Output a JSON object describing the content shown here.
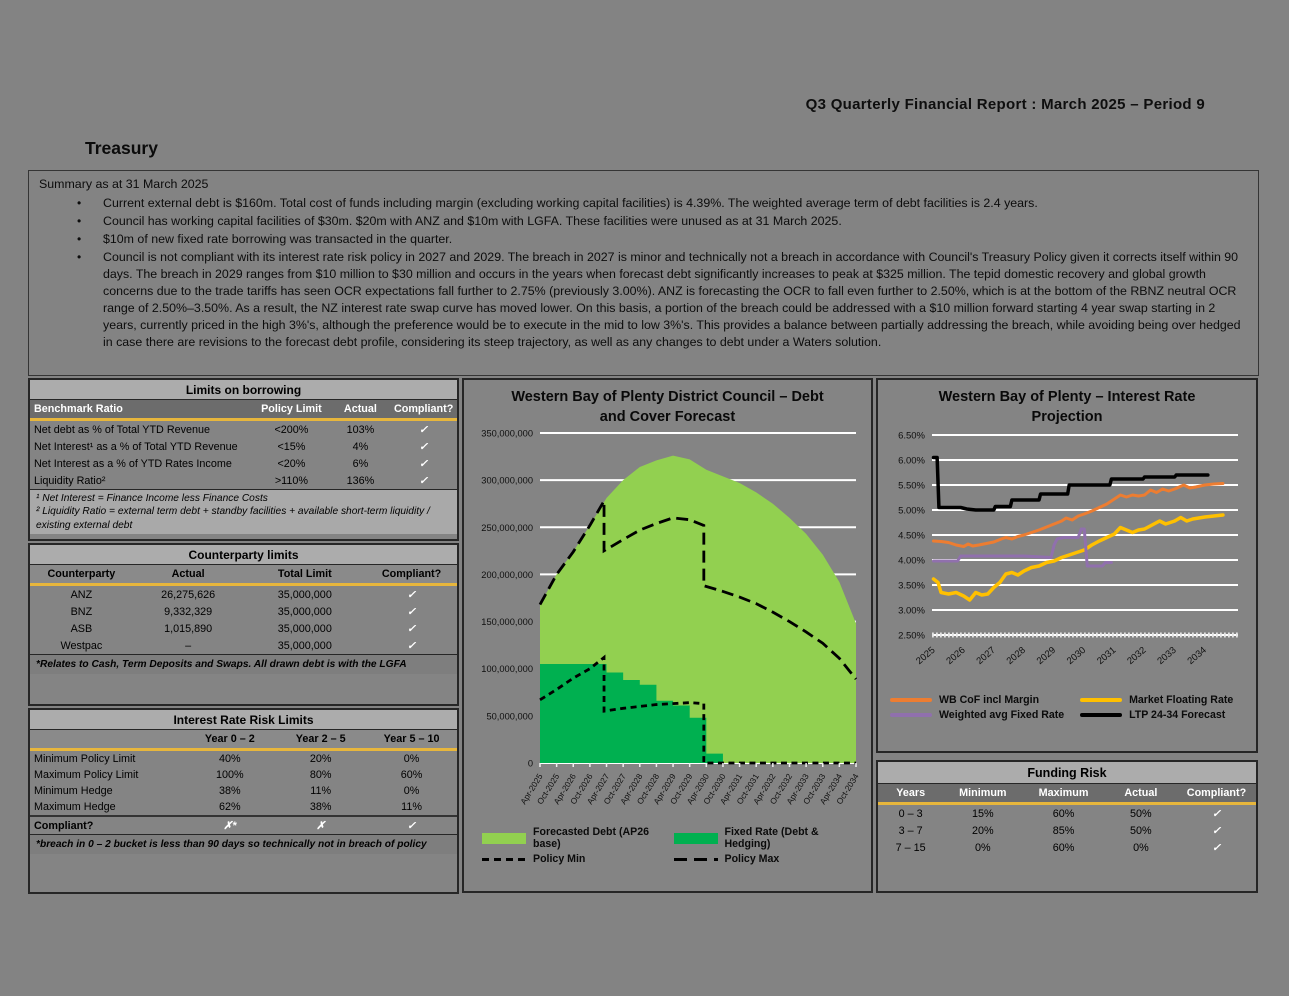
{
  "page": {
    "header": "Q3 Quarterly  Financial Report :  March 2025 – Period 9",
    "section_title": "Treasury"
  },
  "summary": {
    "heading": "Summary as at 31 March 2025",
    "bullets": [
      "Current external debt is $160m. Total cost of funds including margin (excluding working capital facilities) is 4.39%. The weighted average term of debt facilities is 2.4 years.",
      "Council has working capital facilities of $30m.  $20m with ANZ and $10m with LGFA. These facilities were unused as at 31 March 2025.",
      "$10m of new fixed rate borrowing was transacted in the quarter.",
      "Council is not compliant with its interest rate risk policy in 2027 and 2029. The breach in 2027 is minor and technically not a breach in accordance with Council's Treasury Policy given it corrects itself within 90 days. The breach in 2029 ranges from $10 million to $30 million and occurs in the years when forecast debt significantly increases to peak at $325 million.  The tepid domestic recovery and global growth concerns due to the trade tariffs has seen OCR expectations fall further to 2.75% (previously 3.00%). ANZ is forecasting the OCR to fall even further to 2.50%, which is at the bottom of the RBNZ neutral OCR range of 2.50%–3.50%. As a result, the NZ interest rate swap curve has moved lower. On this basis, a portion of the breach could be addressed with a $10 million forward starting 4 year swap starting in 2 years, currently priced in the high 3%'s, although the preference would be to execute in the mid to low 3%'s. This provides a balance between partially addressing the breach, while avoiding being over hedged in case there are revisions to the forecast debt profile, considering its steep trajectory, as well as any changes to debt under a Waters solution."
    ]
  },
  "limits_table": {
    "title": "Limits on borrowing",
    "headers": [
      "Benchmark Ratio",
      "Policy Limit",
      "Actual",
      "Compliant?"
    ],
    "widths": [
      "54%",
      "18%",
      "13%",
      "15%"
    ],
    "align": [
      "left",
      "center",
      "center",
      "center"
    ],
    "rows": [
      [
        "Net debt as % of Total YTD Revenue",
        "<200%",
        "103%",
        "✓"
      ],
      [
        "Net Interest¹ as a % of Total YTD Revenue",
        "<15%",
        "4%",
        "✓"
      ],
      [
        "Net Interest as a % of YTD Rates Income",
        "<20%",
        "6%",
        "✓"
      ],
      [
        "Liquidity Ratio²",
        ">110%",
        "136%",
        "✓"
      ]
    ],
    "footnotes": [
      "¹ Net Interest = Finance Income less Finance Costs",
      "² Liquidity Ratio = external term debt + standby facilities + available short-term liquidity / existing external debt"
    ]
  },
  "counterparty_table": {
    "title": "Counterparty limits",
    "headers": [
      "Counterparty",
      "Actual",
      "Total Limit",
      "Compliant?"
    ],
    "widths": [
      "24%",
      "26%",
      "29%",
      "21%"
    ],
    "align": [
      "center",
      "center",
      "center",
      "center"
    ],
    "rows": [
      [
        "ANZ",
        "26,275,626",
        "35,000,000",
        "✓"
      ],
      [
        "BNZ",
        "9,332,329",
        "35,000,000",
        "✓"
      ],
      [
        "ASB",
        "1,015,890",
        "35,000,000",
        "✓"
      ],
      [
        "Westpac",
        "–",
        "35,000,000",
        "✓"
      ]
    ],
    "footnotes": [
      "*Relates to Cash, Term Deposits and Swaps. All drawn debt is with the LGFA"
    ]
  },
  "interest_risk_table": {
    "title": "Interest Rate Risk Limits",
    "headers": [
      "",
      "Year 0 – 2",
      "Year 2 – 5",
      "Year 5 – 10"
    ],
    "widths": [
      "37%",
      "21%",
      "21%",
      "21%"
    ],
    "align": [
      "left",
      "center",
      "center",
      "center"
    ],
    "rows": [
      [
        "Minimum Policy Limit",
        "40%",
        "20%",
        "0%"
      ],
      [
        "Maximum Policy Limit",
        "100%",
        "80%",
        "60%"
      ],
      [
        "Minimum Hedge",
        "38%",
        "11%",
        "0%"
      ],
      [
        "Maximum Hedge",
        "62%",
        "38%",
        "11%"
      ],
      [
        "Compliant?",
        "✗*",
        "✗",
        "✓"
      ]
    ],
    "footnotes": [
      "*breach in 0 – 2 bucket is less than 90 days so technically not in breach of policy"
    ]
  },
  "funding_table": {
    "title": "Funding Risk",
    "headers": [
      "Years",
      "Minimum",
      "Maximum",
      "Actual",
      "Compliant?"
    ],
    "widths": [
      "17%",
      "21%",
      "22%",
      "19%",
      "21%"
    ],
    "align": [
      "center",
      "center",
      "center",
      "center",
      "center"
    ],
    "rows": [
      [
        "0 – 3",
        "15%",
        "60%",
        "50%",
        "✓"
      ],
      [
        "3 – 7",
        "20%",
        "85%",
        "50%",
        "✓"
      ],
      [
        "7 – 15",
        "0%",
        "60%",
        "0%",
        "✓"
      ]
    ]
  },
  "colors": {
    "light_green": "#92D050",
    "dark_green": "#00B050",
    "orange": "#ED7D31",
    "yellow": "#FFC000",
    "purple": "#9070AD",
    "black": "#000000",
    "gold_rule": "#E7B63C"
  },
  "chart_data": [
    {
      "type": "area",
      "title": "Western Bay of Plenty District Council – Debt and Cover Forecast",
      "x_labels": [
        "Apr-2025",
        "Oct-2025",
        "Apr-2026",
        "Oct-2026",
        "Apr-2027",
        "Oct-2027",
        "Apr-2028",
        "Oct-2028",
        "Apr-2029",
        "Oct-2029",
        "Apr-2030",
        "Oct-2030",
        "Apr-2031",
        "Oct-2031",
        "Apr-2032",
        "Oct-2032",
        "Apr-2033",
        "Oct-2033",
        "Apr-2034",
        "Oct-2034"
      ],
      "ylim": [
        0,
        350000000
      ],
      "y_tick_step": 50000000,
      "grid": true,
      "legend_position": "bottom",
      "series": [
        {
          "name": "Forecasted Debt (AP26 base)",
          "style": "area",
          "color": "#92D050",
          "values": [
            168000000,
            200000000,
            224000000,
            252000000,
            281000000,
            300000000,
            314000000,
            321000000,
            326000000,
            322000000,
            311000000,
            304000000,
            297000000,
            287000000,
            275000000,
            260000000,
            243000000,
            221000000,
            192000000,
            148000000
          ]
        },
        {
          "name": "Fixed Rate (Debt & Hedging)",
          "style": "area-step",
          "color": "#00B050",
          "values": [
            105000000,
            105000000,
            105000000,
            105000000,
            96000000,
            88000000,
            83000000,
            66000000,
            61000000,
            48000000,
            10000000,
            0,
            0,
            0,
            0,
            0,
            0,
            0,
            0,
            0
          ]
        },
        {
          "name": "Policy Min",
          "style": "dashed",
          "color": "#000000",
          "dash": "6 4.5",
          "points": [
            [
              0,
              67000000
            ],
            [
              1,
              78000000
            ],
            [
              2,
              90000000
            ],
            [
              3,
              100000000
            ],
            [
              3.85,
              112000000
            ],
            [
              3.85,
              55000000
            ],
            [
              5,
              58000000
            ],
            [
              7,
              62000000
            ],
            [
              9,
              64000000
            ],
            [
              9.85,
              63000000
            ],
            [
              9.85,
              0
            ],
            [
              19,
              0
            ]
          ]
        },
        {
          "name": "Policy Max",
          "style": "dashed",
          "color": "#000000",
          "dash": "12 6",
          "points": [
            [
              0,
              168000000
            ],
            [
              1,
              200000000
            ],
            [
              2,
              224000000
            ],
            [
              3,
              252000000
            ],
            [
              3.85,
              278000000
            ],
            [
              3.85,
              225000000
            ],
            [
              5,
              237000000
            ],
            [
              6,
              247000000
            ],
            [
              7,
              254000000
            ],
            [
              8,
              260000000
            ],
            [
              9,
              258000000
            ],
            [
              9.85,
              252000000
            ],
            [
              9.85,
              188000000
            ],
            [
              11,
              182000000
            ],
            [
              12,
              176000000
            ],
            [
              13,
              169000000
            ],
            [
              14,
              160000000
            ],
            [
              15,
              150000000
            ],
            [
              16,
              139000000
            ],
            [
              17,
              127000000
            ],
            [
              18,
              111000000
            ],
            [
              19,
              89000000
            ]
          ]
        }
      ]
    },
    {
      "type": "line",
      "title": "Western Bay of Plenty – Interest Rate Projection",
      "xlim": [
        2024.95,
        2035.1
      ],
      "x_ticks": [
        2025,
        2026,
        2027,
        2028,
        2029,
        2030,
        2031,
        2032,
        2033,
        2034
      ],
      "ylim": [
        2.5,
        6.5
      ],
      "y_tick_step": 0.5,
      "grid": true,
      "legend_position": "bottom",
      "series": [
        {
          "name": "WB CoF incl Margin",
          "style": "line",
          "color": "#ED7D31",
          "width": 3,
          "points": [
            [
              2025,
              4.38
            ],
            [
              2025.25,
              4.37
            ],
            [
              2025.5,
              4.35
            ],
            [
              2025.75,
              4.3
            ],
            [
              2026,
              4.27
            ],
            [
              2026.15,
              4.32
            ],
            [
              2026.3,
              4.28
            ],
            [
              2026.5,
              4.3
            ],
            [
              2026.75,
              4.33
            ],
            [
              2027,
              4.36
            ],
            [
              2027.25,
              4.42
            ],
            [
              2027.4,
              4.45
            ],
            [
              2027.6,
              4.42
            ],
            [
              2027.8,
              4.47
            ],
            [
              2028,
              4.5
            ],
            [
              2028.25,
              4.55
            ],
            [
              2028.5,
              4.6
            ],
            [
              2028.75,
              4.66
            ],
            [
              2029,
              4.72
            ],
            [
              2029.25,
              4.78
            ],
            [
              2029.4,
              4.84
            ],
            [
              2029.6,
              4.8
            ],
            [
              2029.8,
              4.88
            ],
            [
              2030,
              4.92
            ],
            [
              2030.25,
              4.98
            ],
            [
              2030.5,
              5.05
            ],
            [
              2030.75,
              5.12
            ],
            [
              2031,
              5.22
            ],
            [
              2031.2,
              5.3
            ],
            [
              2031.4,
              5.26
            ],
            [
              2031.6,
              5.3
            ],
            [
              2031.8,
              5.28
            ],
            [
              2032,
              5.3
            ],
            [
              2032.2,
              5.4
            ],
            [
              2032.4,
              5.35
            ],
            [
              2032.6,
              5.42
            ],
            [
              2032.8,
              5.38
            ],
            [
              2033,
              5.42
            ],
            [
              2033.3,
              5.5
            ],
            [
              2033.5,
              5.44
            ],
            [
              2033.7,
              5.46
            ],
            [
              2034,
              5.5
            ],
            [
              2034.3,
              5.52
            ],
            [
              2034.6,
              5.53
            ]
          ]
        },
        {
          "name": "Market Floating Rate",
          "style": "line",
          "color": "#FFC000",
          "width": 3.5,
          "points": [
            [
              2025,
              3.62
            ],
            [
              2025.15,
              3.55
            ],
            [
              2025.25,
              3.35
            ],
            [
              2025.5,
              3.32
            ],
            [
              2025.75,
              3.35
            ],
            [
              2026,
              3.28
            ],
            [
              2026.2,
              3.2
            ],
            [
              2026.4,
              3.35
            ],
            [
              2026.6,
              3.3
            ],
            [
              2026.8,
              3.32
            ],
            [
              2027,
              3.45
            ],
            [
              2027.2,
              3.55
            ],
            [
              2027.4,
              3.72
            ],
            [
              2027.6,
              3.75
            ],
            [
              2027.8,
              3.7
            ],
            [
              2028,
              3.78
            ],
            [
              2028.25,
              3.85
            ],
            [
              2028.5,
              3.88
            ],
            [
              2028.75,
              3.95
            ],
            [
              2029,
              3.98
            ],
            [
              2029.25,
              4.05
            ],
            [
              2029.5,
              4.1
            ],
            [
              2029.75,
              4.15
            ],
            [
              2030,
              4.2
            ],
            [
              2030.25,
              4.3
            ],
            [
              2030.5,
              4.38
            ],
            [
              2030.75,
              4.45
            ],
            [
              2031,
              4.52
            ],
            [
              2031.2,
              4.65
            ],
            [
              2031.4,
              4.6
            ],
            [
              2031.6,
              4.55
            ],
            [
              2031.8,
              4.6
            ],
            [
              2032,
              4.62
            ],
            [
              2032.25,
              4.7
            ],
            [
              2032.5,
              4.78
            ],
            [
              2032.7,
              4.72
            ],
            [
              2033,
              4.78
            ],
            [
              2033.2,
              4.85
            ],
            [
              2033.4,
              4.78
            ],
            [
              2033.6,
              4.82
            ],
            [
              2034,
              4.86
            ],
            [
              2034.3,
              4.88
            ],
            [
              2034.6,
              4.9
            ]
          ]
        },
        {
          "name": "Weighted avg Fixed Rate",
          "style": "line",
          "color": "#9070AD",
          "width": 3,
          "points": [
            [
              2025,
              3.98
            ],
            [
              2025.8,
              3.98
            ],
            [
              2025.9,
              4.08
            ],
            [
              2028,
              4.08
            ],
            [
              2028.9,
              4.05
            ],
            [
              2029,
              4.3
            ],
            [
              2029.1,
              4.42
            ],
            [
              2029.3,
              4.45
            ],
            [
              2029.8,
              4.45
            ],
            [
              2029.9,
              4.62
            ],
            [
              2030,
              4.62
            ],
            [
              2030.1,
              3.88
            ],
            [
              2030.6,
              3.88
            ],
            [
              2030.7,
              3.95
            ],
            [
              2030.9,
              3.95
            ]
          ]
        },
        {
          "name": "LTP 24-34 Forecast",
          "style": "line",
          "color": "#000000",
          "width": 3.5,
          "points": [
            [
              2025,
              6.05
            ],
            [
              2025.12,
              6.05
            ],
            [
              2025.18,
              5.05
            ],
            [
              2025.9,
              5.05
            ],
            [
              2026.1,
              5.02
            ],
            [
              2026.4,
              5.0
            ],
            [
              2027,
              5.0
            ],
            [
              2027.05,
              5.07
            ],
            [
              2027.55,
              5.07
            ],
            [
              2027.6,
              5.2
            ],
            [
              2028.5,
              5.2
            ],
            [
              2028.55,
              5.32
            ],
            [
              2029.45,
              5.32
            ],
            [
              2029.5,
              5.5
            ],
            [
              2030.85,
              5.5
            ],
            [
              2030.9,
              5.62
            ],
            [
              2031.95,
              5.62
            ],
            [
              2032,
              5.66
            ],
            [
              2033,
              5.66
            ],
            [
              2033.05,
              5.7
            ],
            [
              2034.1,
              5.7
            ]
          ]
        }
      ]
    }
  ]
}
